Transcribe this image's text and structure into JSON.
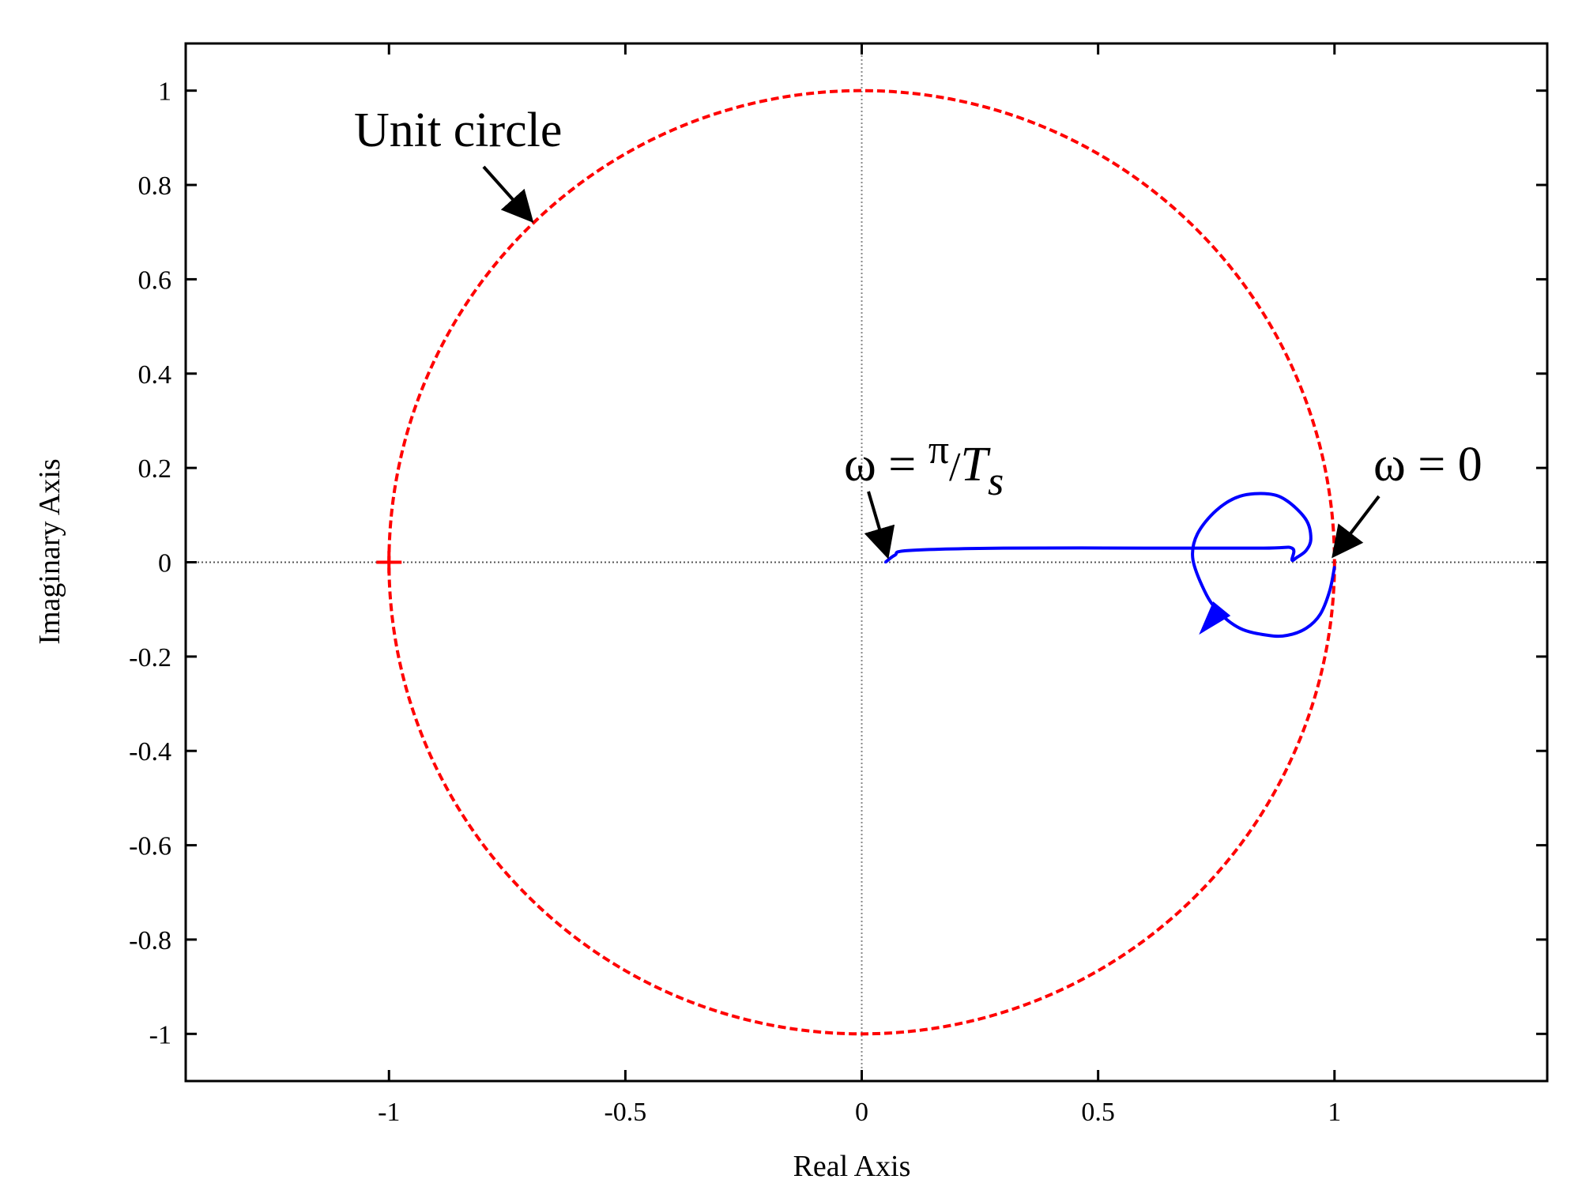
{
  "chart_data": {
    "type": "line",
    "title": "",
    "xlabel": "Real Axis",
    "ylabel": "Imaginary Axis",
    "xlim": [
      -1.43,
      1.45
    ],
    "ylim": [
      -1.1,
      1.1
    ],
    "x_ticks": [
      -1,
      -0.5,
      0,
      0.5,
      1
    ],
    "x_tick_labels": [
      "-1",
      "-0.5",
      "0",
      "0.5",
      "1"
    ],
    "y_ticks": [
      1,
      0.8,
      0.6,
      0.4,
      0.2,
      0,
      -0.2,
      -0.4,
      -0.6,
      -0.8,
      -1
    ],
    "y_tick_labels": [
      "1",
      "0.8",
      "0.6",
      "0.4",
      "0.2",
      "0",
      "-0.2",
      "-0.4",
      "-0.6",
      "-0.8",
      "-1"
    ],
    "grid": false,
    "zero_lines": true,
    "colors": {
      "unit_circle": "#ff0000",
      "nyquist": "#0000ff",
      "critical_point": "#ff0000"
    },
    "critical_point": {
      "x": -1,
      "y": 0,
      "marker": "+"
    },
    "unit_circle": {
      "center": [
        0,
        0
      ],
      "radius": 1,
      "style": "dashed"
    },
    "series": [
      {
        "x": [
          1.0,
          0.99,
          0.97,
          0.94,
          0.9,
          0.86,
          0.8,
          0.75,
          0.72,
          0.7,
          0.71,
          0.75,
          0.8,
          0.86,
          0.9,
          0.94,
          0.95,
          0.94,
          0.92,
          0.91,
          0.91,
          0.85,
          0.6,
          0.3,
          0.1,
          0.07,
          0.05
        ],
        "y": [
          -0.01,
          -0.06,
          -0.11,
          -0.14,
          -0.155,
          -0.155,
          -0.14,
          -0.1,
          -0.05,
          0.01,
          0.06,
          0.11,
          0.14,
          0.145,
          0.13,
          0.09,
          0.05,
          0.025,
          0.01,
          0.005,
          0.03,
          0.03,
          0.03,
          0.03,
          0.025,
          0.015,
          0.0
        ]
      }
    ],
    "annotations": [
      {
        "label": "Unit circle",
        "x": -0.7,
        "y": 0.71
      },
      {
        "label": "ω = π/Ts",
        "x": 0.05,
        "y": 0.0
      },
      {
        "label": "ω = 0",
        "x": 1.0,
        "y": 0.0
      }
    ]
  },
  "annotation_text": {
    "unit_circle": "Unit circle",
    "omega_pi_prefix": "ω = ",
    "omega_pi_num": "π",
    "omega_pi_slash": "/",
    "omega_pi_den": "T",
    "omega_pi_sub": "s",
    "omega_zero": "ω = 0"
  }
}
